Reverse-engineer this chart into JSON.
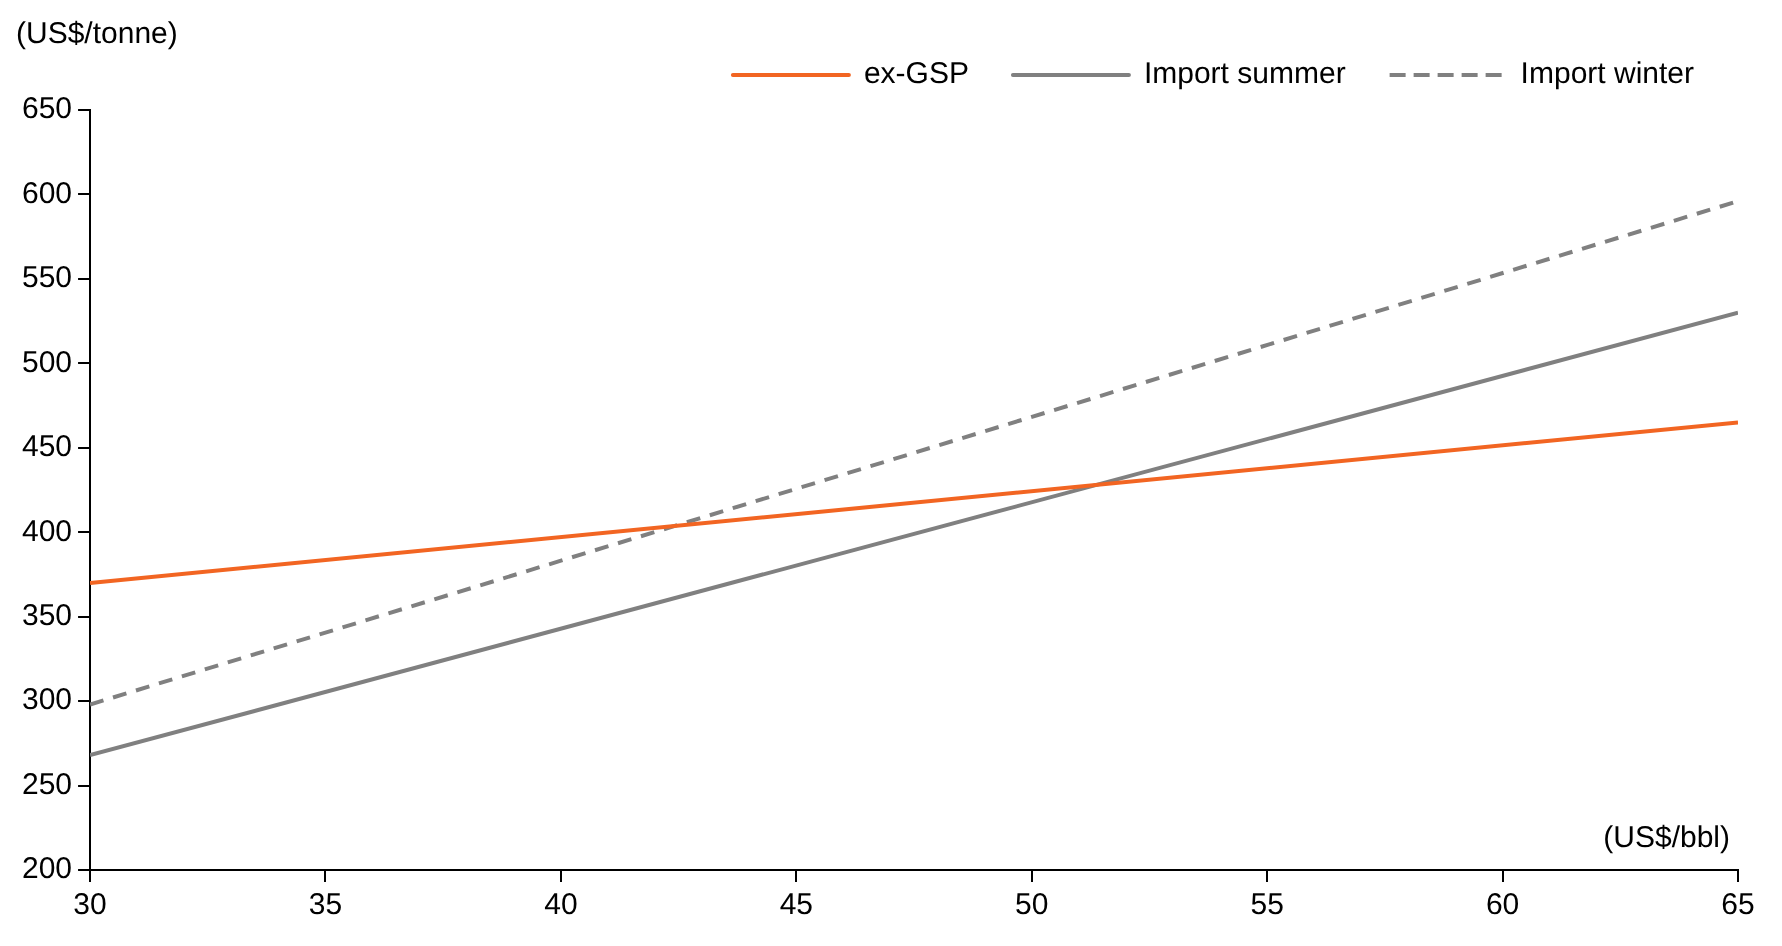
{
  "chart_data": {
    "type": "line",
    "xlabel": "(US$/bbl)",
    "ylabel": "(US$/tonne)",
    "x": [
      30,
      65
    ],
    "series": [
      {
        "name": "ex-GSP",
        "color": "#f26522",
        "values": [
          370,
          465
        ],
        "line_style": "solid"
      },
      {
        "name": "Import summer",
        "color": "#808080",
        "values": [
          268,
          530
        ],
        "line_style": "solid"
      },
      {
        "name": "Import winter",
        "color": "#808080",
        "values": [
          298,
          596
        ],
        "line_style": "dashed"
      }
    ],
    "xlim": [
      30,
      65
    ],
    "xticks": [
      30,
      35,
      40,
      45,
      50,
      55,
      60,
      65
    ],
    "ylim": [
      200,
      650
    ],
    "yticks": [
      200,
      250,
      300,
      350,
      400,
      450,
      500,
      550,
      600,
      650
    ],
    "grid": false,
    "legend": "top",
    "marker": "none"
  }
}
